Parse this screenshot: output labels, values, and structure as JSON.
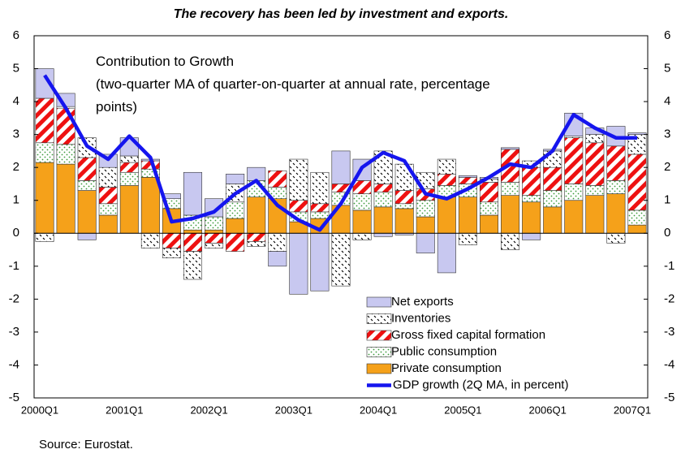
{
  "chart_data": {
    "type": "stacked_bar_line",
    "title": "The recovery has been led by investment and exports.",
    "annotation": [
      "Contribution to Growth",
      "(two-quarter MA of quarter-on-quarter at annual rate, percentage",
      "points)"
    ],
    "source": "Source:  Eurostat.",
    "categories": [
      "2000Q1",
      null,
      null,
      null,
      "2001Q1",
      null,
      null,
      null,
      "2002Q1",
      null,
      null,
      null,
      "2003Q1",
      null,
      null,
      null,
      "2004Q1",
      null,
      null,
      null,
      "2005Q1",
      null,
      null,
      null,
      "2006Q1",
      null,
      null,
      null,
      "2007Q1"
    ],
    "ylim": [
      -5,
      6
    ],
    "yticks": [
      -5,
      -4,
      -3,
      -2,
      -1,
      0,
      1,
      2,
      3,
      4,
      5,
      6
    ],
    "y2lim": [
      -5,
      6
    ],
    "y2ticks": [
      -5,
      -4,
      -3,
      -2,
      -1,
      0,
      1,
      2,
      3,
      4,
      5,
      6
    ],
    "series": [
      {
        "name": "Private consumption",
        "color": "#f5a11a",
        "pattern": "solid",
        "values": [
          2.15,
          2.1,
          1.3,
          0.55,
          1.45,
          1.7,
          0.75,
          0.1,
          0.1,
          0.45,
          1.1,
          1.05,
          0.35,
          0.45,
          0.85,
          0.7,
          0.8,
          0.75,
          0.5,
          1.1,
          1.1,
          0.55,
          1.15,
          0.95,
          0.8,
          1.0,
          1.15,
          1.2,
          0.25
        ]
      },
      {
        "name": "Public consumption",
        "color": "#3a9a3a",
        "pattern": "dots",
        "values": [
          0.6,
          0.6,
          0.3,
          0.35,
          0.4,
          0.25,
          0.3,
          0.45,
          0.4,
          0.5,
          0.5,
          0.35,
          0.3,
          0.2,
          0.4,
          0.5,
          0.45,
          0.15,
          0.5,
          0.35,
          0.4,
          0.4,
          0.4,
          0.2,
          0.5,
          0.5,
          0.3,
          0.4,
          0.45
        ]
      },
      {
        "name": "Gross fixed capital formation",
        "color": "#ee1111",
        "pattern": "stripes",
        "values": [
          1.35,
          1.1,
          0.7,
          0.5,
          0.3,
          0.25,
          -0.45,
          -0.55,
          -0.3,
          -0.55,
          -0.25,
          0.5,
          0.35,
          0.25,
          0.25,
          0.4,
          0.25,
          0.4,
          0.35,
          0.35,
          0.2,
          0.6,
          1.0,
          0.85,
          0.7,
          1.4,
          1.3,
          1.05,
          1.7
        ]
      },
      {
        "name": "Inventories",
        "color": "#000000",
        "pattern": "checks",
        "values": [
          -0.25,
          0.05,
          0.6,
          0.6,
          0.2,
          -0.45,
          -0.3,
          -0.85,
          -0.15,
          0.55,
          -0.15,
          -0.55,
          1.25,
          0.95,
          -1.6,
          -0.2,
          1.0,
          0.8,
          0.5,
          0.45,
          -0.35,
          0.1,
          -0.5,
          0.2,
          0.5,
          0.05,
          0.25,
          -0.3,
          0.6
        ]
      },
      {
        "name": "Net exports",
        "color": "#c8c8f0",
        "pattern": "solid",
        "values": [
          0.9,
          0.4,
          -0.2,
          0.4,
          0.55,
          0.05,
          0.15,
          1.3,
          0.55,
          0.3,
          0.4,
          -0.45,
          -1.85,
          -1.75,
          1.0,
          0.65,
          -0.1,
          -0.05,
          -0.6,
          -1.2,
          0.05,
          0.05,
          0.05,
          -0.2,
          0.05,
          0.7,
          0.2,
          0.6,
          0.05
        ]
      }
    ],
    "line": {
      "name": "GDP growth (2Q MA, in percent)",
      "color": "#1515ee",
      "values": [
        4.8,
        3.8,
        2.65,
        2.25,
        2.95,
        2.3,
        0.35,
        0.45,
        0.65,
        1.2,
        1.6,
        0.85,
        0.4,
        0.1,
        0.9,
        2.0,
        2.45,
        2.2,
        1.2,
        1.05,
        1.35,
        1.7,
        2.1,
        2.0,
        2.5,
        3.6,
        3.2,
        2.9,
        2.9
      ]
    }
  }
}
